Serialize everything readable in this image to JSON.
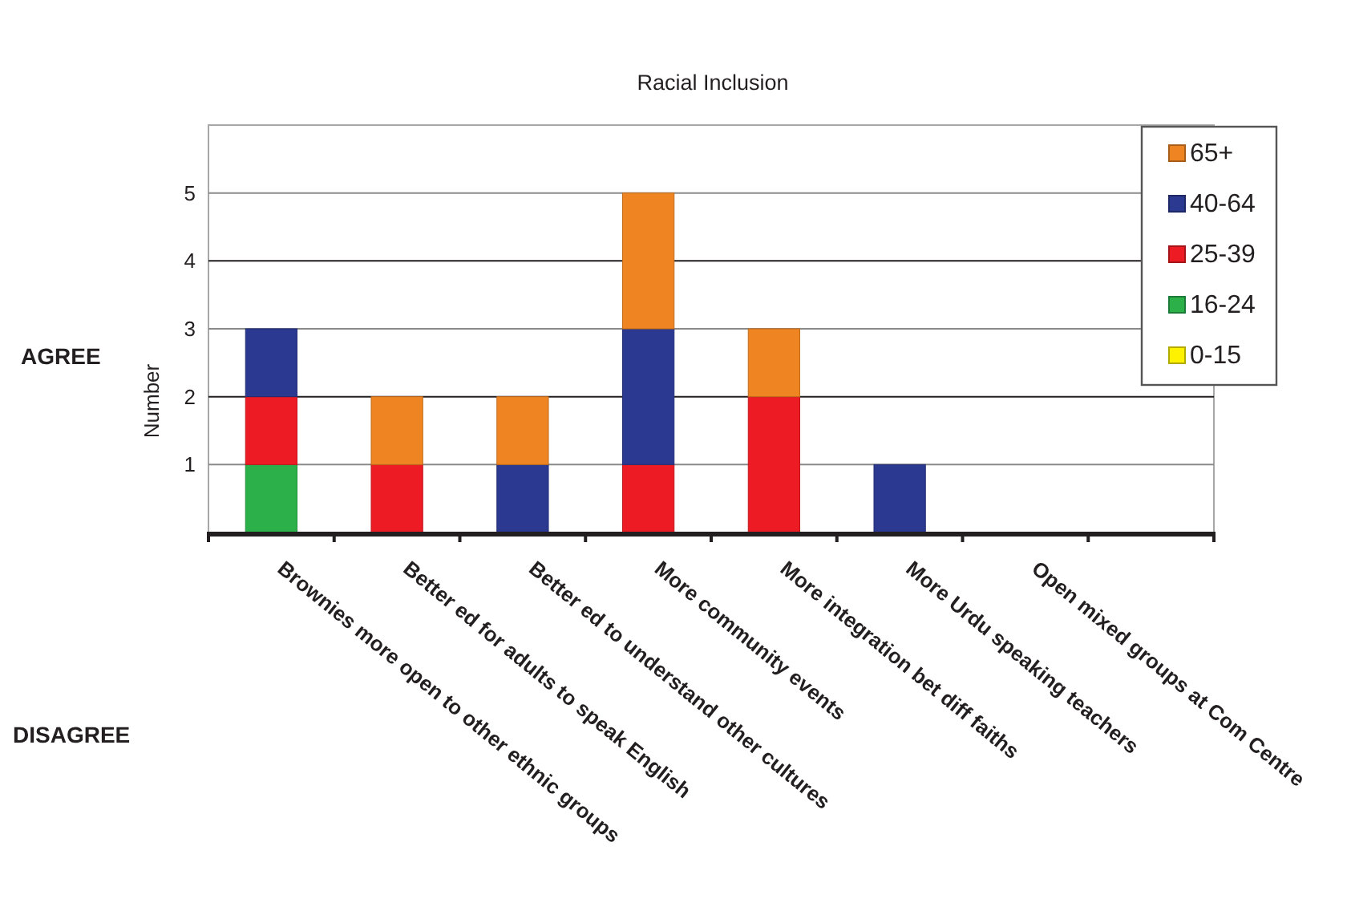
{
  "chart_data": {
    "type": "bar",
    "title": "Racial Inclusion",
    "ylabel": "Number",
    "annotations": [
      "AGREE",
      "DISAGREE"
    ],
    "categories": [
      "Brownies more open to other ethnic groups",
      "Better ed for adults to speak English",
      "Better ed to understand other cultures",
      "More community events",
      "More integration bet diff faiths",
      "More Urdu speaking teachers",
      "Open mixed groups at Com Centre",
      null
    ],
    "series": [
      {
        "name": "0-15",
        "color": "#fff200",
        "values": [
          0,
          0,
          0,
          0,
          0,
          0,
          0,
          0
        ]
      },
      {
        "name": "16-24",
        "color": "#2bb04a",
        "values": [
          1,
          0,
          0,
          0,
          0,
          0,
          0,
          0
        ]
      },
      {
        "name": "25-39",
        "color": "#ed1c24",
        "values": [
          1,
          1,
          0,
          1,
          2,
          0,
          0,
          0
        ]
      },
      {
        "name": "40-64",
        "color": "#2b3990",
        "values": [
          1,
          0,
          1,
          2,
          0,
          1,
          0,
          0
        ]
      },
      {
        "name": "65+",
        "color": "#ee8522",
        "values": [
          0,
          1,
          1,
          2,
          1,
          0,
          0,
          0
        ]
      }
    ],
    "stacked": true,
    "ylim": [
      0,
      6
    ],
    "yticks": [
      1,
      2,
      3,
      4,
      5
    ],
    "grid": "y",
    "legend": "top right"
  }
}
